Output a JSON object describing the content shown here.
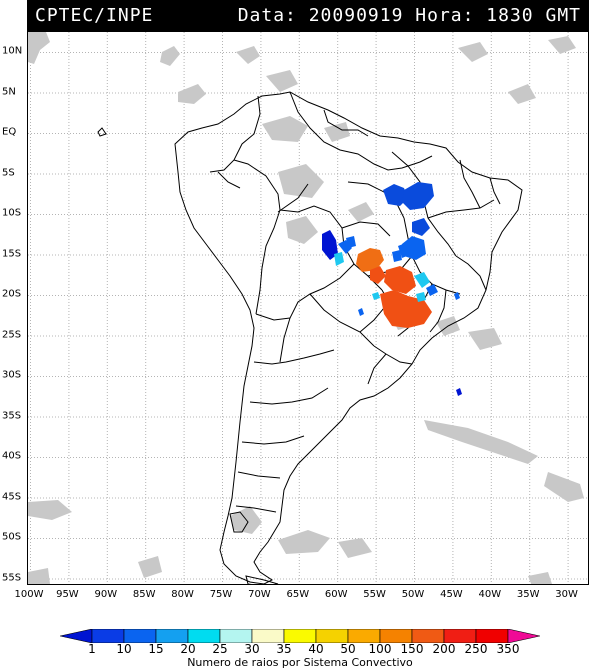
{
  "header": {
    "source": "CPTEC/INPE",
    "date_label": "Data:",
    "date_value": "20090919",
    "time_label": "Hora:",
    "time_value": "1830 GMT"
  },
  "map": {
    "latitude_labels": [
      "10N",
      "5N",
      "EQ",
      "5S",
      "10S",
      "15S",
      "20S",
      "25S",
      "30S",
      "35S",
      "40S",
      "45S",
      "50S",
      "55S"
    ],
    "longitude_labels": [
      "100W",
      "95W",
      "90W",
      "85W",
      "80W",
      "75W",
      "70W",
      "65W",
      "60W",
      "55W",
      "50W",
      "45W",
      "40W",
      "35W",
      "30W"
    ],
    "colors": {
      "land_outline": "#000000",
      "cloud_gray": "#c8c8c8",
      "grid_dots": "#b4b4b4"
    },
    "convective_systems": [
      {
        "region": "central Brazil north",
        "color": "#0a4bdc",
        "count_class": "10-15"
      },
      {
        "region": "Mato Grosso west",
        "color": "#0014d2",
        "count_class": "1-10"
      },
      {
        "region": "Goias",
        "color": "#0a64f0",
        "count_class": "10-15"
      },
      {
        "region": "Mato Grosso central",
        "color": "#f06e14",
        "count_class": "150-200"
      },
      {
        "region": "Minas/Sao Paulo",
        "color": "#f05014",
        "count_class": "200-250"
      },
      {
        "region": "Mato Grosso do Sul",
        "color": "#1ec8f0",
        "count_class": "20-25"
      }
    ]
  },
  "legend": {
    "title": "Numero de raios por Sistema Convectivo",
    "values": [
      "1",
      "10",
      "15",
      "20",
      "25",
      "30",
      "35",
      "40",
      "50",
      "100",
      "150",
      "200",
      "250",
      "350"
    ],
    "colors": [
      "#0014d2",
      "#0a3ce6",
      "#0a64f0",
      "#14a0f0",
      "#00dcf0",
      "#b4f5f0",
      "#fafac8",
      "#fafa00",
      "#f5d200",
      "#faaa00",
      "#f58200",
      "#f05a14",
      "#f01e14",
      "#f00000",
      "#f00a96"
    ]
  }
}
